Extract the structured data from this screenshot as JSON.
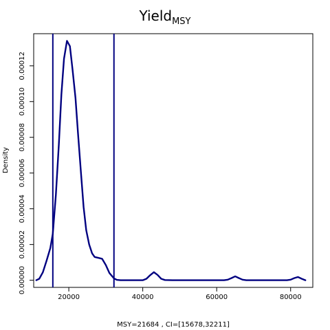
{
  "chart_data": {
    "type": "line",
    "title": "Yield",
    "title_subscript": "MSY",
    "xlabel": "MSY=21684 , CI=[15678,32211]",
    "ylabel": "Density",
    "xlim": [
      10500,
      86000
    ],
    "ylim": [
      -4e-06,
      0.000138
    ],
    "xticks": [
      20000,
      40000,
      60000,
      80000
    ],
    "xtick_labels": [
      "20000",
      "40000",
      "60000",
      "80000"
    ],
    "yticks": [
      0,
      2e-05,
      4e-05,
      6e-05,
      8e-05,
      0.0001,
      0.00012
    ],
    "ytick_labels": [
      "0.00000",
      "0.00002",
      "0.00004",
      "0.00006",
      "0.00008",
      "0.00010",
      "0.00012"
    ],
    "grid": false,
    "line_color": "#000080",
    "vlines": [
      15678,
      32211
    ],
    "series": [
      {
        "x": [
          11200,
          12000,
          13000,
          14000,
          15000,
          15678,
          16500,
          17300,
          18000,
          18700,
          19500,
          20300,
          21000,
          21800,
          22500,
          23300,
          24000,
          24700,
          25500,
          26300,
          27000,
          28000,
          29000,
          30000,
          31000,
          32211,
          33000,
          34000,
          35000,
          36000,
          38000,
          40000,
          41000,
          42000,
          43000,
          44000,
          45000,
          46000,
          48000,
          52000,
          56000,
          60000,
          62000,
          63000,
          64000,
          65000,
          66000,
          67000,
          68000,
          72000,
          76000,
          79000,
          80000,
          81000,
          82000,
          83000,
          84000
        ],
        "y": [
          0,
          8e-07,
          4.5e-06,
          1.1e-05,
          1.8e-05,
          2.6e-05,
          4.8e-05,
          7.6e-05,
          0.000104,
          0.000124,
          0.000134,
          0.000131,
          0.000118,
          0.000102,
          8.2e-05,
          6e-05,
          4.1e-05,
          2.8e-05,
          2e-05,
          1.5e-05,
          1.3e-05,
          1.25e-05,
          1.2e-05,
          8.5e-06,
          4e-06,
          1e-06,
          2e-07,
          0,
          0,
          0,
          0,
          0,
          8e-07,
          2.8e-06,
          4.5e-06,
          3e-06,
          8e-07,
          1e-07,
          0,
          0,
          0,
          0,
          0,
          3e-07,
          1.2e-06,
          2.2e-06,
          1.2e-06,
          3e-07,
          0,
          0,
          0,
          0,
          3e-07,
          1.2e-06,
          1.8e-06,
          8e-07,
          0
        ]
      }
    ]
  }
}
